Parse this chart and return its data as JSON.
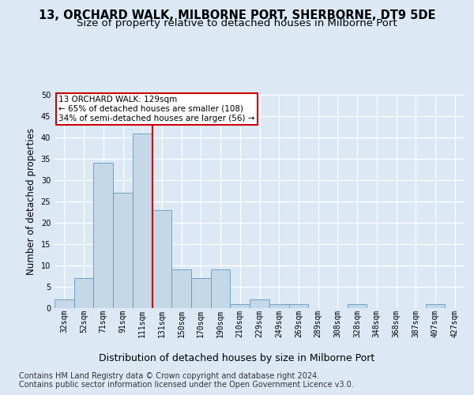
{
  "title": "13, ORCHARD WALK, MILBORNE PORT, SHERBORNE, DT9 5DE",
  "subtitle": "Size of property relative to detached houses in Milborne Port",
  "xlabel": "Distribution of detached houses by size in Milborne Port",
  "ylabel": "Number of detached properties",
  "footer_line1": "Contains HM Land Registry data © Crown copyright and database right 2024.",
  "footer_line2": "Contains public sector information licensed under the Open Government Licence v3.0.",
  "bin_labels": [
    "32sqm",
    "52sqm",
    "71sqm",
    "91sqm",
    "111sqm",
    "131sqm",
    "150sqm",
    "170sqm",
    "190sqm",
    "210sqm",
    "229sqm",
    "249sqm",
    "269sqm",
    "289sqm",
    "308sqm",
    "328sqm",
    "348sqm",
    "368sqm",
    "387sqm",
    "407sqm",
    "427sqm"
  ],
  "bar_heights": [
    2,
    7,
    34,
    27,
    41,
    23,
    9,
    7,
    9,
    1,
    2,
    1,
    1,
    0,
    0,
    1,
    0,
    0,
    0,
    1,
    0
  ],
  "bar_color": "#c5d8e8",
  "bar_edge_color": "#5a9abf",
  "vline_color": "#cc0000",
  "annotation_text": "13 ORCHARD WALK: 129sqm\n← 65% of detached houses are smaller (108)\n34% of semi-detached houses are larger (56) →",
  "annotation_box_color": "#cc0000",
  "ylim": [
    0,
    50
  ],
  "yticks": [
    0,
    5,
    10,
    15,
    20,
    25,
    30,
    35,
    40,
    45,
    50
  ],
  "background_color": "#dce9f5",
  "plot_background_color": "#dce9f5",
  "grid_color": "#ffffff",
  "title_fontsize": 10.5,
  "subtitle_fontsize": 9.5,
  "xlabel_fontsize": 9,
  "ylabel_fontsize": 8.5,
  "tick_fontsize": 7,
  "footer_fontsize": 7,
  "annotation_fontsize": 7.5
}
